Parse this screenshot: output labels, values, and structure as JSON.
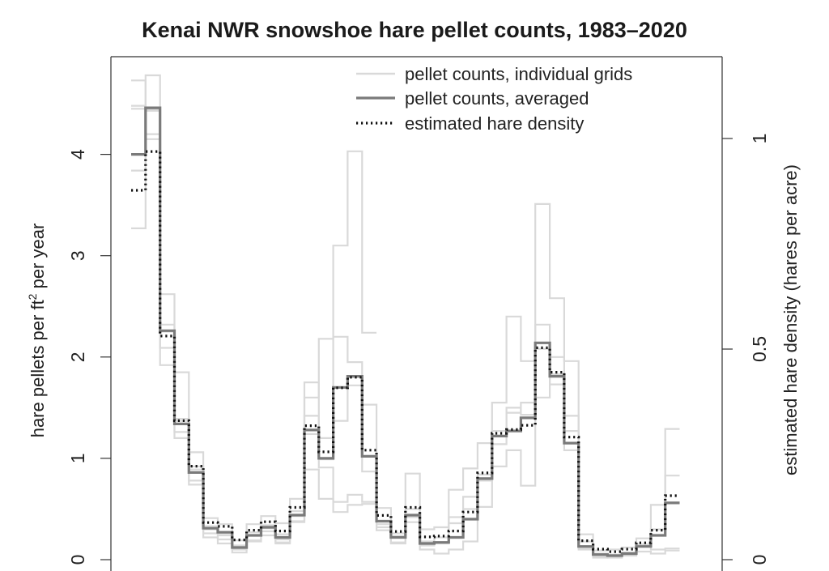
{
  "chart_data": {
    "type": "line",
    "title": "Kenai NWR snowshoe hare pellet counts, 1983–2020",
    "ylabel_left_base": "hare pellets per ft",
    "ylabel_left_sup": "2",
    "ylabel_left_tail": " per year",
    "ylabel_right": "estimated hare density (hares per acre)",
    "left_axis": {
      "ylim": [
        0,
        4.7
      ],
      "ticks": [
        0,
        1,
        2,
        3,
        4
      ],
      "tick_labels": [
        "0",
        "1",
        "2",
        "3",
        "4"
      ]
    },
    "right_axis": {
      "ylim": [
        0,
        1.0
      ],
      "ticks": [
        0,
        0.5,
        1
      ],
      "tick_labels": [
        "0",
        "0.5",
        "1"
      ],
      "left_units_per_unit": 4.85
    },
    "x_start": 1983,
    "x_end": 2020,
    "grid": false,
    "legend_position": "top-right",
    "legend": [
      {
        "label": "pellet counts, individual grids",
        "style": "light-gray-solid"
      },
      {
        "label": "pellet counts, averaged",
        "style": "dark-gray-solid"
      },
      {
        "label": "estimated hare density",
        "style": "black-dotted"
      }
    ],
    "colors": {
      "individual": "#d9d9d9",
      "averaged": "#7a7a7a",
      "density": "#111111"
    },
    "series": [
      {
        "name": "pellet counts, individual grids",
        "grids": [
          [
            3.27,
            4.78,
            2.25,
            1.37,
            0.89,
            0.3,
            0.26,
            0.11,
            0.24,
            0.31,
            0.2,
            0.43,
            1.75,
            1.2,
            3.1,
            4.03,
            2.24
          ],
          [
            4.73,
            4.43,
            2.62,
            1.85,
            1.06,
            0.41,
            0.35,
            0.19,
            0.35,
            0.43,
            0.36,
            0.6,
            1.6,
            2.18,
            2.2,
            1.95,
            1.53,
            0.51,
            0.26,
            0.85,
            0.3,
            0.32,
            0.69,
            0.9,
            1.15,
            1.55,
            2.4,
            1.96,
            3.51,
            2.58,
            1.96,
            0.25,
            0.09,
            0.1,
            0.12,
            0.21,
            0.54,
            1.29
          ],
          [
            4.45,
            4.15,
            1.92,
            1.2,
            0.78,
            0.22,
            0.16,
            0.07,
            0.19,
            0.24,
            0.16,
            0.38,
            1.42,
            0.99,
            1.37,
            1.72,
            0.87,
            0.32,
            0.16,
            0.5,
            0.14,
            0.16,
            0.42,
            0.62,
            0.84,
            1.14,
            1.45,
            1.55,
            2.32,
            2.0,
            1.42,
            0.18,
            0.06,
            0.05,
            0.07,
            0.15,
            0.3,
            0.83
          ],
          [
            4.48,
            4.44,
            2.32,
            1.39,
            0.92,
            0.33,
            0.24,
            0.14,
            0.27,
            0.34,
            0.25,
            0.48,
            1.24,
            0.91,
            0.47,
            0.54,
            0.55,
            0.35,
            0.23,
            0.42,
            0.18,
            0.22,
            0.36,
            0.5,
            0.78,
            1.27,
            1.5,
            1.43,
            2.08,
            1.73,
            1.08,
            0.11,
            0.03,
            0.02,
            0.04,
            0.13,
            0.1,
            0.11
          ],
          [
            3.84,
            4.2,
            2.09,
            1.26,
            0.74,
            0.26,
            0.2,
            0.1,
            0.18,
            0.28,
            0.17,
            0.37,
            0.89,
            0.6,
            0.57,
            0.64,
            0.57,
            0.29,
            0.17,
            0.37,
            0.1,
            0.06,
            0.1,
            0.18,
            0.52,
            0.92,
            1.08,
            0.73,
            1.6,
            1.83,
            1.27,
            0.1,
            0.02,
            0.04,
            0.06,
            0.08,
            0.06,
            0.09
          ]
        ]
      },
      {
        "name": "pellet counts, averaged",
        "values": [
          4.0,
          4.46,
          2.26,
          1.34,
          0.86,
          0.31,
          0.27,
          0.12,
          0.24,
          0.32,
          0.22,
          0.44,
          1.28,
          1.0,
          1.7,
          1.81,
          1.02,
          0.38,
          0.22,
          0.44,
          0.16,
          0.17,
          0.22,
          0.4,
          0.8,
          1.22,
          1.27,
          1.4,
          2.14,
          1.81,
          1.15,
          0.13,
          0.05,
          0.04,
          0.06,
          0.13,
          0.24,
          0.56
        ]
      },
      {
        "name": "estimated hare density",
        "values": [
          0.877,
          0.969,
          0.531,
          0.33,
          0.222,
          0.088,
          0.079,
          0.047,
          0.07,
          0.09,
          0.068,
          0.124,
          0.318,
          0.256,
          0.408,
          0.433,
          0.26,
          0.105,
          0.067,
          0.124,
          0.054,
          0.056,
          0.068,
          0.113,
          0.206,
          0.3,
          0.309,
          0.319,
          0.503,
          0.445,
          0.291,
          0.045,
          0.025,
          0.019,
          0.025,
          0.04,
          0.07,
          0.152
        ]
      }
    ]
  }
}
